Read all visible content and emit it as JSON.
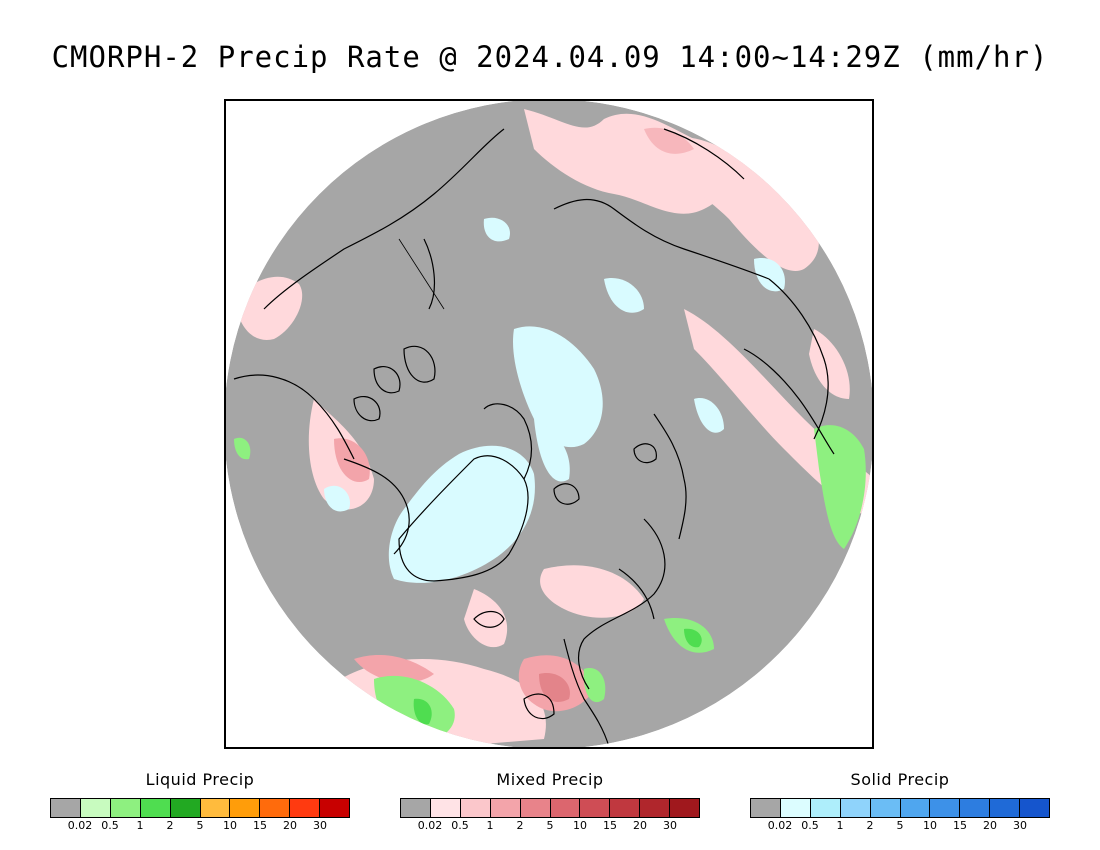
{
  "title": "CMORPH-2 Precip Rate @ 2024.04.09 14:00~14:29Z (mm/hr)",
  "map": {
    "projection": "north-polar-stereographic",
    "background_color": "#a6a6a6",
    "coastline_color": "#000000",
    "precip_regions": [
      {
        "type": "mixed",
        "level": "0.02",
        "color": "#ffd9dc",
        "area": "northwest Russia / Barents Sea"
      },
      {
        "type": "mixed",
        "level": "0.5",
        "color": "#f7b7bc",
        "area": "Norway / North Sea"
      },
      {
        "type": "mixed",
        "level": "2",
        "color": "#e37d84",
        "area": "North Sea coast"
      },
      {
        "type": "mixed",
        "level": "0.02",
        "color": "#ffd9dc",
        "area": "Alaska / Bering Strait"
      },
      {
        "type": "mixed",
        "level": "0.02",
        "color": "#ffd9dc",
        "area": "Canadian Arctic Archipelago"
      },
      {
        "type": "solid",
        "level": "0.02",
        "color": "#d9fbff",
        "area": "Greenland ice sheet"
      },
      {
        "type": "solid",
        "level": "0.02",
        "color": "#d9fbff",
        "area": "central Arctic Ocean"
      },
      {
        "type": "solid",
        "level": "0.02",
        "color": "#d9fbff",
        "area": "Siberia"
      },
      {
        "type": "liquid",
        "level": "0.5",
        "color": "#8ef080",
        "area": "North Atlantic"
      },
      {
        "type": "liquid",
        "level": "1",
        "color": "#4fd650",
        "area": "Baltic region"
      },
      {
        "type": "liquid",
        "level": "0.5",
        "color": "#8ef080",
        "area": "central Russia"
      }
    ]
  },
  "legends": [
    {
      "title": "Liquid Precip",
      "colors": [
        "#a6a6a6",
        "#c8fbbf",
        "#8ef080",
        "#4fdd50",
        "#22a922",
        "#ffbb3d",
        "#ff9d0a",
        "#ff6b0c",
        "#ff3a10",
        "#c80000"
      ],
      "ticks": [
        "0.02",
        "0.5",
        "1",
        "2",
        "5",
        "10",
        "15",
        "20",
        "30"
      ]
    },
    {
      "title": "Mixed Precip",
      "colors": [
        "#a6a6a6",
        "#ffe3e6",
        "#fbc7cb",
        "#f3a4aa",
        "#e8838a",
        "#dc666e",
        "#cf4d55",
        "#c0383f",
        "#b0262c",
        "#a0181d"
      ],
      "ticks": [
        "0.02",
        "0.5",
        "1",
        "2",
        "5",
        "10",
        "15",
        "20",
        "30"
      ]
    },
    {
      "title": "Solid Precip",
      "colors": [
        "#a6a6a6",
        "#dcfdff",
        "#aeeefb",
        "#8fd3fb",
        "#6bbdf5",
        "#4fa6ef",
        "#3d91e8",
        "#2d7de0",
        "#1f6ad7",
        "#1555cd"
      ],
      "ticks": [
        "0.02",
        "0.5",
        "1",
        "2",
        "5",
        "10",
        "15",
        "20",
        "30"
      ]
    }
  ]
}
